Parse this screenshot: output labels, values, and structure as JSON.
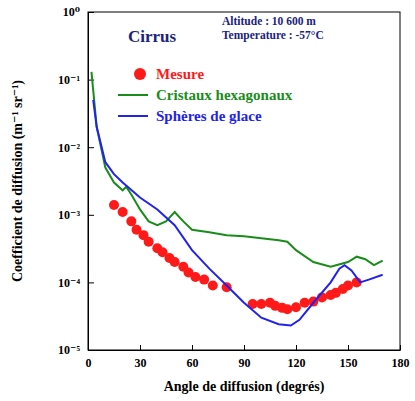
{
  "chart_data": {
    "type": "line",
    "title": "Cirrus",
    "annotations": [
      "Altitude : 10 600 m",
      "Temperature : -57°C"
    ],
    "x_label": "Angle de diffusion  (degrés)",
    "y_label": "Coefficient de diffusion  (m⁻¹ sr⁻¹)",
    "log": "y",
    "legend": "upper right",
    "xlim": [
      0,
      180
    ],
    "xticks": [
      0,
      30,
      60,
      90,
      120,
      150,
      180
    ],
    "ylim": [
      1e-05,
      1
    ],
    "yticks": [
      {
        "value": 1e-05,
        "label": "10⁻⁵"
      },
      {
        "value": 0.0001,
        "label": "10⁻⁴"
      },
      {
        "value": 0.001,
        "label": "10⁻³"
      },
      {
        "value": 0.01,
        "label": "10⁻²"
      },
      {
        "value": 0.1,
        "label": "10⁻¹"
      },
      {
        "value": 1,
        "label": "10⁰"
      }
    ],
    "series": [
      {
        "name": "Mesure",
        "color": "#ff1a1a",
        "type": "scatter",
        "marker": "circle",
        "x": [
          15,
          20,
          25,
          28,
          32,
          35,
          40,
          43,
          47,
          50,
          55,
          58,
          62,
          67,
          72,
          80,
          95,
          100,
          105,
          108,
          112,
          115,
          120,
          125,
          130,
          135,
          140,
          143,
          147,
          150,
          155
        ],
        "values": [
          0.0014,
          0.0011,
          0.0008,
          0.0006,
          0.0005,
          0.0004,
          0.00032,
          0.00028,
          0.00023,
          0.0002,
          0.00017,
          0.00014,
          0.00012,
          0.00011,
          9e-05,
          8.5e-05,
          4.8e-05,
          4.8e-05,
          5e-05,
          4.5e-05,
          4.2e-05,
          4e-05,
          4.3e-05,
          5e-05,
          5.2e-05,
          6e-05,
          6.5e-05,
          7e-05,
          8e-05,
          9e-05,
          0.0001
        ]
      },
      {
        "name": "Cristaux hexagonaux",
        "color": "#1a8c1a",
        "type": "line",
        "line_style": "solid",
        "x": [
          2,
          5,
          10,
          15,
          20,
          22,
          25,
          30,
          35,
          40,
          45,
          50,
          55,
          60,
          70,
          80,
          90,
          100,
          110,
          115,
          120,
          130,
          140,
          150,
          155,
          160,
          165,
          170
        ],
        "values": [
          0.13,
          0.02,
          0.005,
          0.003,
          0.0023,
          0.0026,
          0.002,
          0.0012,
          0.0008,
          0.0007,
          0.0008,
          0.0011,
          0.0008,
          0.0006,
          0.00055,
          0.0005,
          0.00048,
          0.00045,
          0.00042,
          0.0004,
          0.0003,
          0.0002,
          0.00017,
          0.0002,
          0.00024,
          0.00022,
          0.00018,
          0.00021
        ]
      },
      {
        "name": "Sphères de glace",
        "color": "#2222ee",
        "type": "line",
        "line_style": "solid",
        "x": [
          3,
          5,
          10,
          15,
          20,
          30,
          40,
          50,
          60,
          70,
          80,
          90,
          100,
          110,
          117,
          122,
          130,
          140,
          145,
          148,
          152,
          157,
          162,
          170
        ],
        "values": [
          0.05,
          0.02,
          0.006,
          0.004,
          0.003,
          0.0018,
          0.0012,
          0.0007,
          0.0003,
          0.00016,
          9e-05,
          5e-05,
          3e-05,
          2.4e-05,
          2.3e-05,
          2.8e-05,
          5e-05,
          0.0001,
          0.00016,
          0.00018,
          0.00015,
          0.0001,
          0.00011,
          0.00013
        ]
      }
    ]
  }
}
